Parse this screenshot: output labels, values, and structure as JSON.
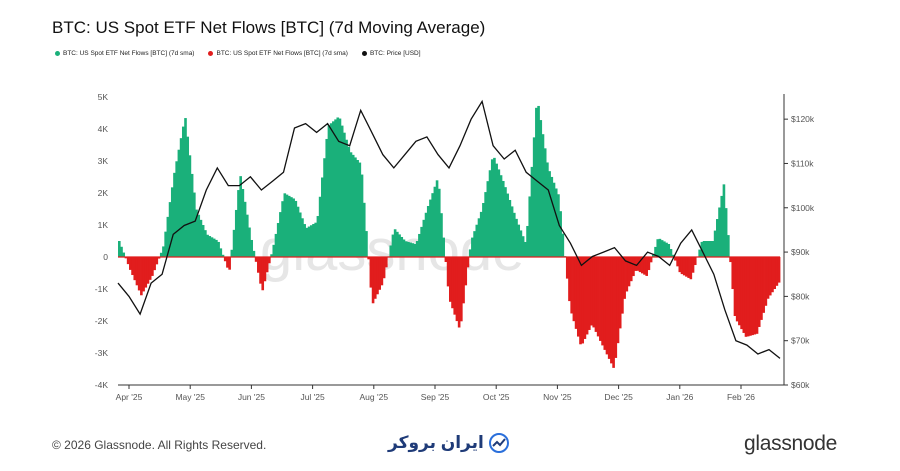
{
  "title": "BTC: US Spot ETF Net Flows [BTC] (7d Moving Average)",
  "legend": [
    {
      "label": "BTC: US Spot ETF Net Flows [BTC] (7d sma)",
      "color": "#1ab07a"
    },
    {
      "label": "BTC: US Spot ETF Net Flows [BTC] (7d sma)",
      "color": "#e11d1d"
    },
    {
      "label": "BTC: Price [USD]",
      "color": "#111111"
    }
  ],
  "footer": {
    "copyright": "© 2026 Glassnode. All Rights Reserved.",
    "brand": "glassnode",
    "partner": "ایران بروکر",
    "watermark": "glassnode"
  },
  "colors": {
    "positive": "#1ab07a",
    "negative": "#e11d1d",
    "price": "#111111"
  },
  "chart_data": {
    "type": "bar",
    "title": "BTC: US Spot ETF Net Flows [BTC] (7d Moving Average)",
    "y_left": {
      "min": -4000,
      "max": 5000,
      "ticks": [
        -4000,
        -3000,
        -2000,
        -1000,
        0,
        1000,
        2000,
        3000,
        4000,
        5000
      ],
      "tick_labels": [
        "-4K",
        "-3K",
        "-2K",
        "-1K",
        "0",
        "1K",
        "2K",
        "3K",
        "4K",
        "5K"
      ]
    },
    "y_right": {
      "min": 60000,
      "max": 125000,
      "ticks": [
        60000,
        70000,
        80000,
        90000,
        100000,
        110000,
        120000
      ],
      "tick_labels": [
        "$60k",
        "$70k",
        "$80k",
        "$90k",
        "$100k",
        "$110k",
        "$120k"
      ]
    },
    "x_ticks": [
      "Apr '25",
      "May '25",
      "Jun '25",
      "Jul '25",
      "Aug '25",
      "Sep '25",
      "Oct '25",
      "Nov '25",
      "Dec '25",
      "Jan '26",
      "Feb '26"
    ],
    "flows_weekly": [
      500,
      -400,
      -1200,
      -600,
      300,
      2600,
      4400,
      1500,
      700,
      500,
      -500,
      2600,
      600,
      -1100,
      300,
      2000,
      1800,
      900,
      1100,
      4100,
      4400,
      3300,
      2900,
      -1500,
      -800,
      900,
      500,
      400,
      1500,
      2500,
      -1300,
      -2300,
      500,
      1500,
      3200,
      2300,
      1300,
      400,
      5000,
      2800,
      1900,
      -1600,
      -2800,
      -2100,
      -2800,
      -3500,
      -1200,
      -400,
      -600,
      600,
      400,
      -500,
      -700,
      500,
      500,
      2300,
      -1900,
      -2500,
      -2400,
      -1300,
      -800
    ],
    "price_weekly": [
      83000,
      80000,
      76000,
      83000,
      85000,
      94000,
      96000,
      97000,
      104000,
      109000,
      105000,
      105000,
      107000,
      104000,
      106000,
      108000,
      118000,
      119000,
      117000,
      119000,
      115000,
      114000,
      122000,
      117000,
      112000,
      109000,
      112000,
      115000,
      116000,
      112000,
      109000,
      114000,
      120000,
      124000,
      114000,
      111000,
      113000,
      108000,
      106000,
      104000,
      96000,
      92000,
      87000,
      89000,
      90000,
      91000,
      88000,
      87000,
      90000,
      89000,
      87000,
      92000,
      95000,
      90000,
      85000,
      77000,
      70000,
      69000,
      67000,
      68000,
      66000
    ]
  }
}
